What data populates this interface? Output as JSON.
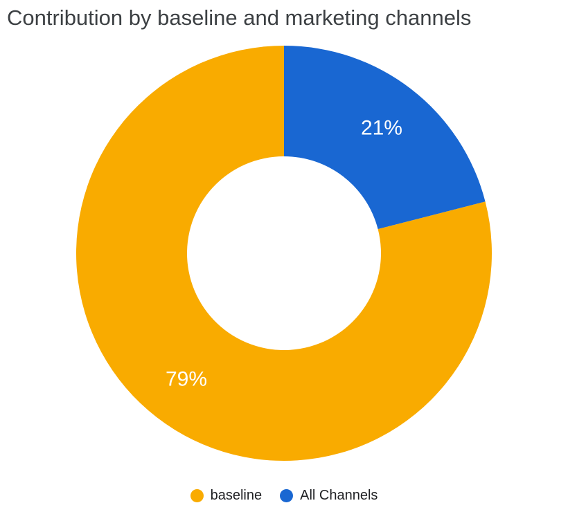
{
  "chart_data": {
    "type": "pie",
    "variant": "donut",
    "title": "Contribution by baseline and marketing channels",
    "categories": [
      "All Channels",
      "baseline"
    ],
    "values": [
      21,
      79
    ],
    "labels": [
      "21%",
      "79%"
    ],
    "colors": [
      "#1967D2",
      "#F9AB00"
    ],
    "legend": {
      "position": "bottom",
      "entries": [
        {
          "label": "baseline",
          "color": "#F9AB00"
        },
        {
          "label": "All Channels",
          "color": "#1967D2"
        }
      ]
    }
  }
}
